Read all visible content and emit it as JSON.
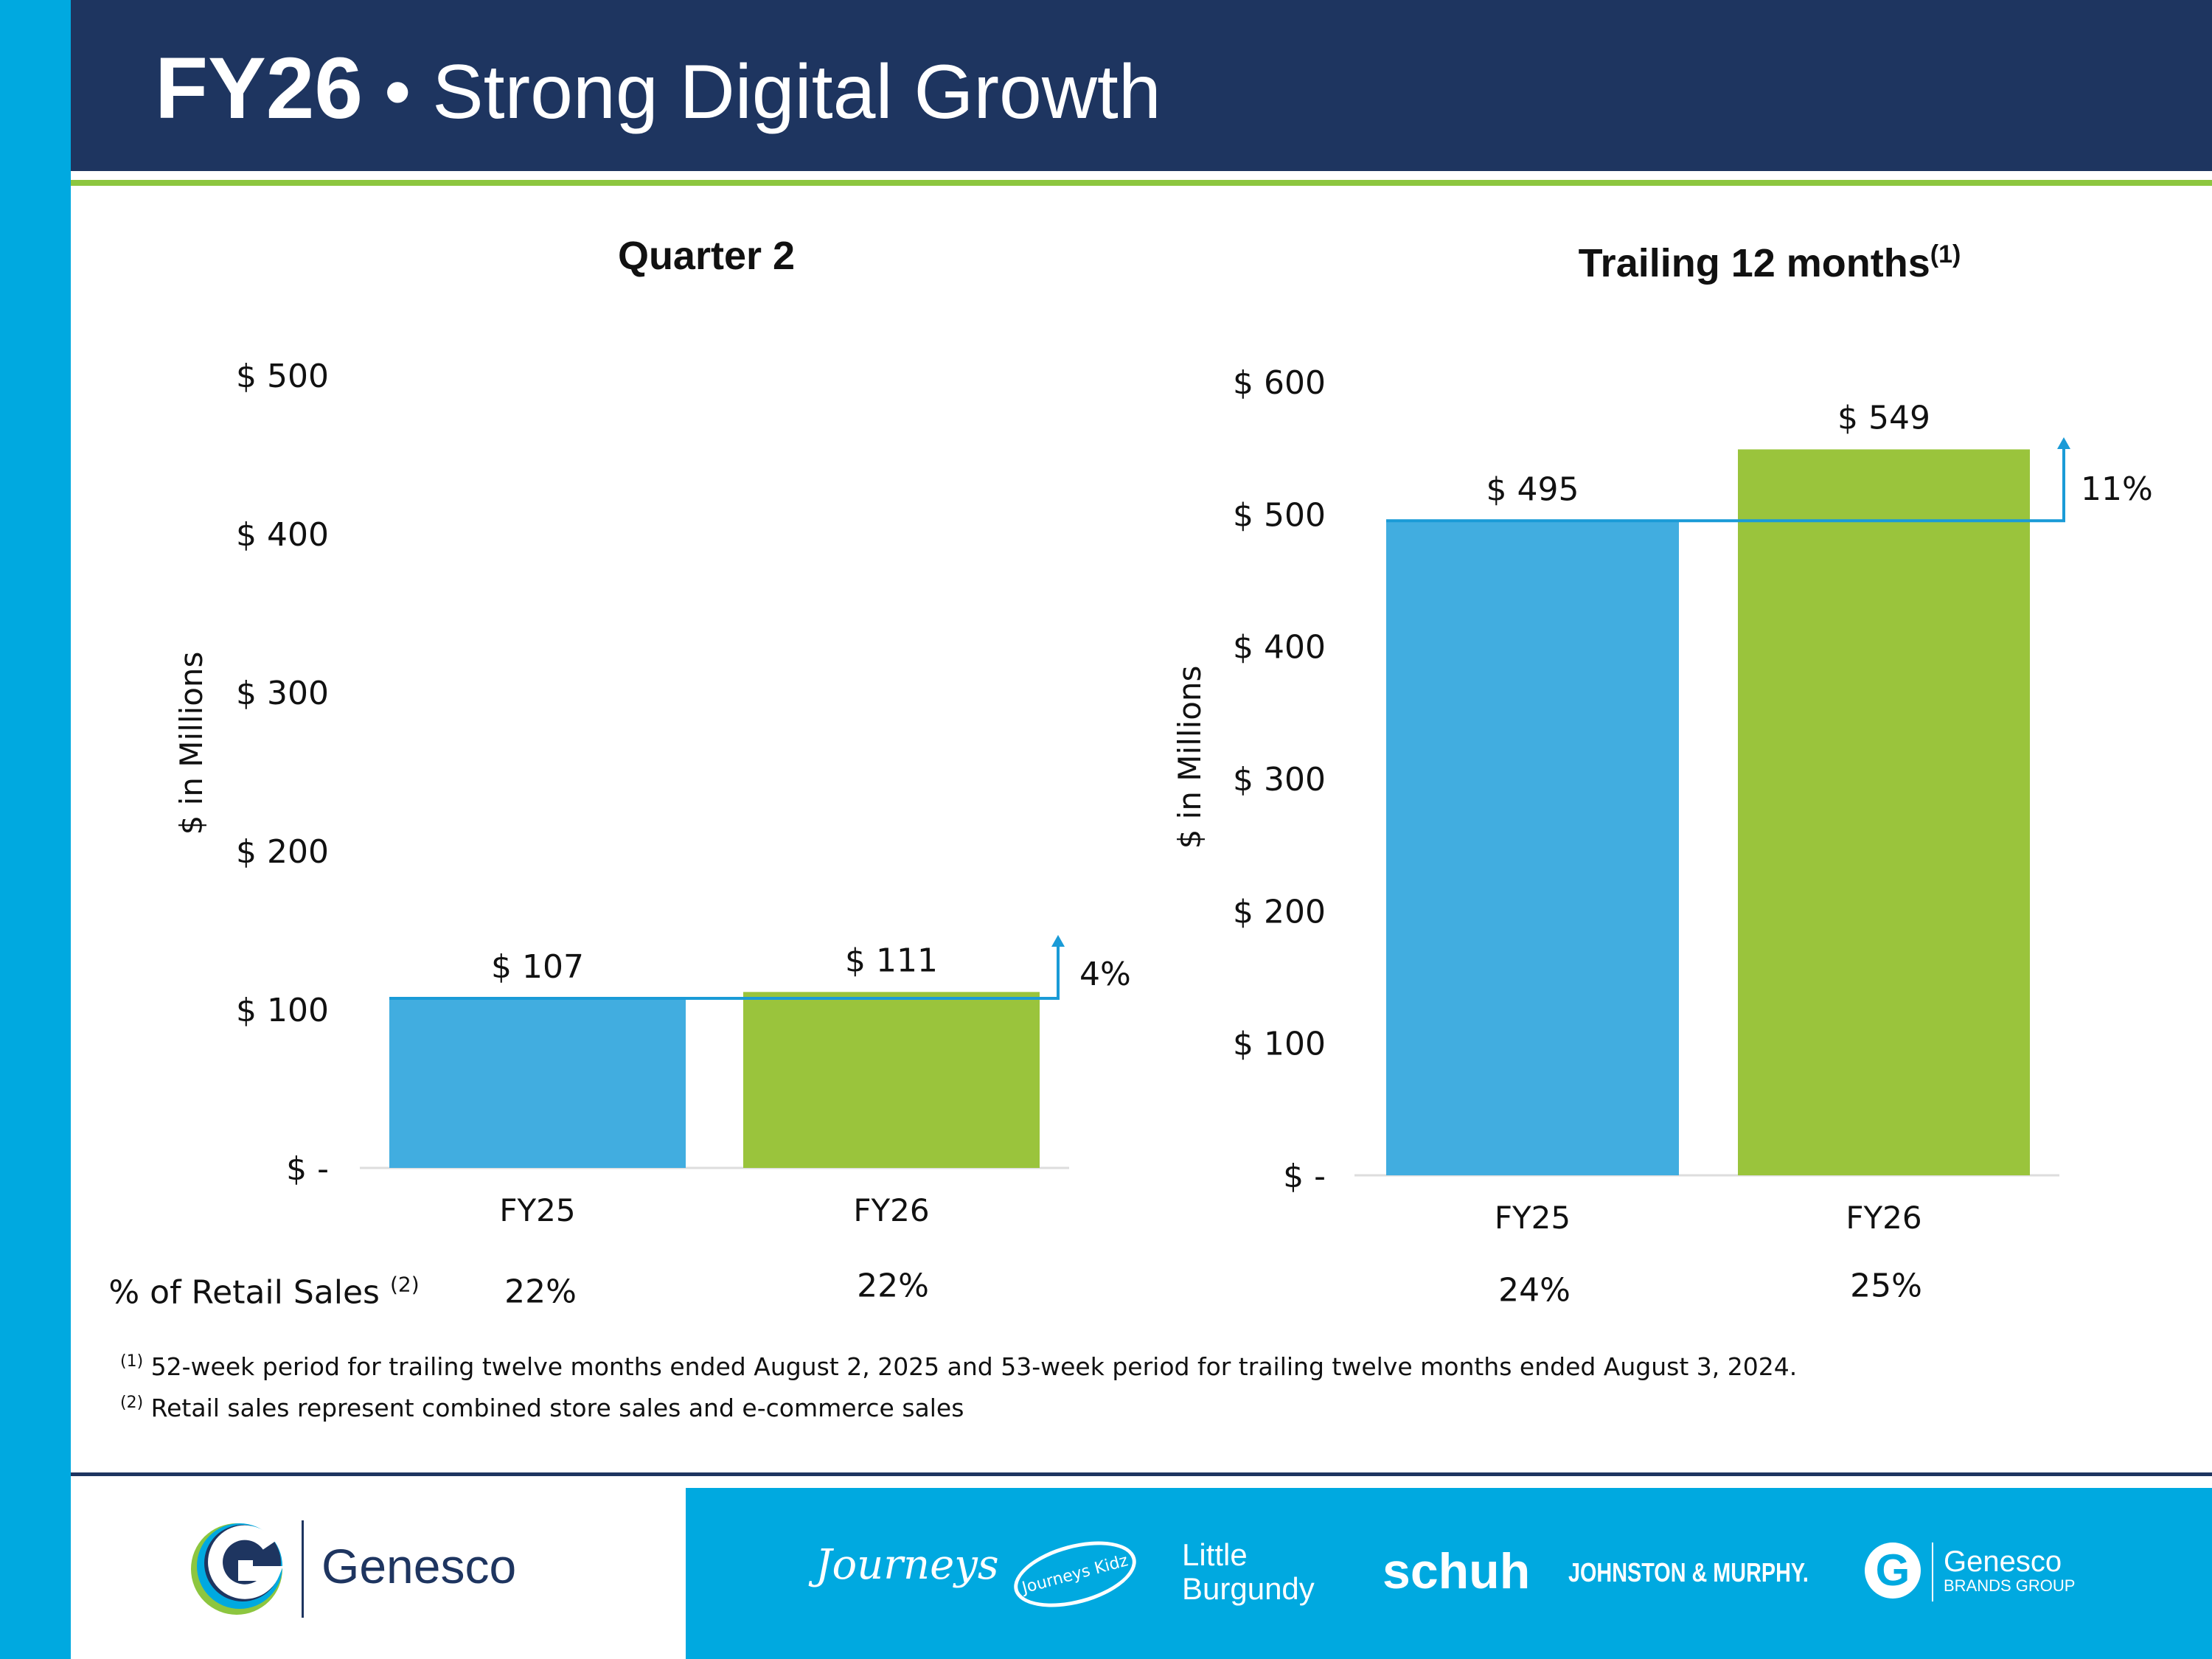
{
  "header": {
    "title_bold": "FY26",
    "title_rest": "• Strong Digital Growth"
  },
  "colors": {
    "fy25": "#41ade0",
    "fy26": "#9ac43c",
    "navy": "#1e3560",
    "accent_blue": "#00a9e0",
    "connector": "#1a9bd7"
  },
  "chart_data": [
    {
      "type": "bar",
      "title": "Quarter 2",
      "title_sup": "",
      "ylabel": "$ in Millions",
      "ylim": [
        0,
        500
      ],
      "yticks": [
        0,
        100,
        200,
        300,
        400,
        500
      ],
      "ytick_labels": [
        "$ -",
        "$ 100",
        "$ 200",
        "$ 300",
        "$ 400",
        "$ 500"
      ],
      "categories": [
        "FY25",
        "FY26"
      ],
      "values": [
        107,
        111
      ],
      "data_labels": [
        "$ 107",
        "$ 111"
      ],
      "growth_label": "4%",
      "grid": false
    },
    {
      "type": "bar",
      "title": "Trailing 12 months",
      "title_sup": "(1)",
      "ylabel": "$ in Millions",
      "ylim": [
        0,
        600
      ],
      "yticks": [
        0,
        100,
        200,
        300,
        400,
        500,
        600
      ],
      "ytick_labels": [
        "$ -",
        "$ 100",
        "$ 200",
        "$ 300",
        "$ 400",
        "$ 500",
        "$ 600"
      ],
      "categories": [
        "FY25",
        "FY26"
      ],
      "values": [
        495,
        549
      ],
      "data_labels": [
        "$ 495",
        "$ 549"
      ],
      "growth_label": "11%",
      "grid": false
    }
  ],
  "retail_row": {
    "label": "% of Retail Sales",
    "label_sup": "(2)",
    "values": [
      "22%",
      "22%",
      "24%",
      "25%"
    ]
  },
  "footnotes": [
    {
      "mark": "(1)",
      "text": "52-week period for trailing twelve months ended August 2, 2025 and 53-week period for trailing twelve months ended August 3, 2024."
    },
    {
      "mark": "(2)",
      "text": "Retail sales represent combined store sales and e-commerce sales"
    }
  ],
  "footer": {
    "company": "Genesco",
    "brands": [
      "Journeys",
      "Journeys Kidz",
      "Little",
      "Burgundy",
      "schuh",
      "JOHNSTON & MURPHY.",
      "Genesco",
      "BRANDS GROUP"
    ]
  }
}
